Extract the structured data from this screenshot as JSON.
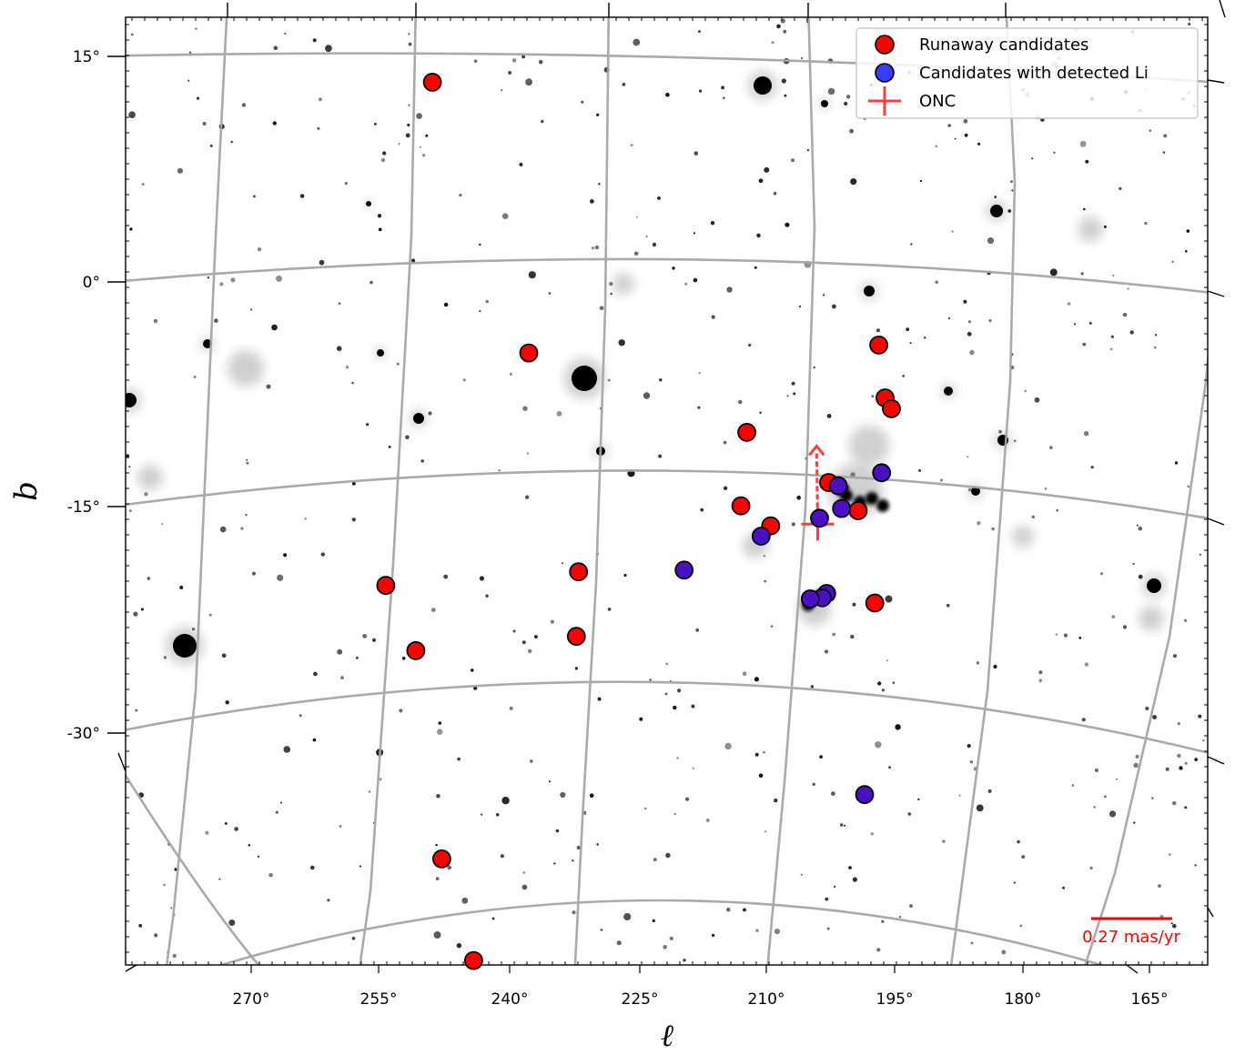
{
  "chart_data": {
    "type": "scatter",
    "xlabel": "ℓ",
    "ylabel": "b",
    "x_axis": {
      "ticks": [
        270,
        255,
        240,
        225,
        210,
        195,
        180,
        165
      ],
      "tick_labels": [
        "270°",
        "255°",
        "240°",
        "225°",
        "210°",
        "195°",
        "180°",
        "165°"
      ],
      "reversed": true
    },
    "y_axis": {
      "ticks": [
        15,
        0,
        -15,
        -30
      ],
      "tick_labels": [
        "15°",
        "0°",
        "-15°",
        "-30°"
      ]
    },
    "xlim": [
      285,
      163
    ],
    "ylim": [
      -60,
      20
    ],
    "grid": true,
    "background": "grayscale sky map",
    "legend": {
      "position": "top-right",
      "entries": [
        {
          "label": "Runaway candidates",
          "marker": "circle",
          "color": "#ff0000"
        },
        {
          "label": "Candidates with detected Li",
          "marker": "circle",
          "color": "#3b3bff"
        },
        {
          "label": "ONC",
          "marker": "plus",
          "color": "#ff3b3b"
        }
      ]
    },
    "series": [
      {
        "name": "Runaway candidates",
        "color": "#ff0000",
        "points": [
          {
            "x": 250.1,
            "y": 13.9
          },
          {
            "x": 237.2,
            "y": -4.5
          },
          {
            "x": 197.1,
            "y": -3.9
          },
          {
            "x": 196.5,
            "y": -7.4
          },
          {
            "x": 195.8,
            "y": -8.1
          },
          {
            "x": 212.2,
            "y": -10.0
          },
          {
            "x": 202.9,
            "y": -13.2
          },
          {
            "x": 212.9,
            "y": -14.9
          },
          {
            "x": 199.5,
            "y": -15.0
          },
          {
            "x": 209.5,
            "y": -16.2
          },
          {
            "x": 254.0,
            "y": -19.4
          },
          {
            "x": 231.7,
            "y": -19.2
          },
          {
            "x": 197.4,
            "y": -21.1
          },
          {
            "x": 251.0,
            "y": -23.9
          },
          {
            "x": 232.2,
            "y": -23.5
          },
          {
            "x": 249.4,
            "y": -37.9
          },
          {
            "x": 246.2,
            "y": -44.8
          }
        ]
      },
      {
        "name": "Candidates with detected Li",
        "color": "#3b3bff",
        "points": [
          {
            "x": 196.9,
            "y": -12.4
          },
          {
            "x": 201.8,
            "y": -13.4
          },
          {
            "x": 201.4,
            "y": -14.9
          },
          {
            "x": 203.9,
            "y": -15.6
          },
          {
            "x": 210.6,
            "y": -16.9
          },
          {
            "x": 219.5,
            "y": -19.2
          },
          {
            "x": 203.0,
            "y": -20.6
          },
          {
            "x": 203.5,
            "y": -20.9
          },
          {
            "x": 204.9,
            "y": -21.0
          },
          {
            "x": 198.2,
            "y": -33.9
          }
        ]
      }
    ],
    "annotations": {
      "onc_marker": {
        "x": 204.1,
        "y": -16.0
      },
      "onc_arrow_tip": {
        "x": 204.3,
        "y": -10.8
      },
      "scale_bar_label": "0.27 mas/yr",
      "scale_bar_color": "#ff0000"
    }
  }
}
